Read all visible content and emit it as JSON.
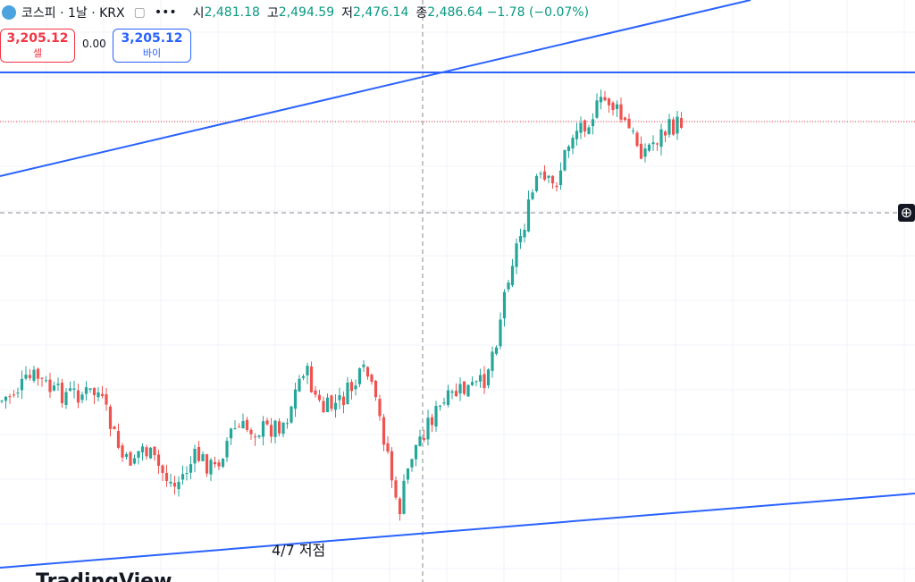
{
  "header": {
    "symbol": "코스피 · 1날 · KRX",
    "ohlc": [
      {
        "label": "시",
        "value": "2,481.18"
      },
      {
        "label": "고",
        "value": "2,494.59"
      },
      {
        "label": "저",
        "value": "2,476.14"
      },
      {
        "label": "종",
        "value": "2,486.64"
      }
    ],
    "change": "−1.78 (−0.07%)"
  },
  "trade": {
    "sell_price": "3,205.12",
    "sell_label": "셀",
    "spread": "0.00",
    "buy_price": "3,205.12",
    "buy_label": "바이"
  },
  "annotation": "4/7 저점",
  "logo": "TradingView"
}
